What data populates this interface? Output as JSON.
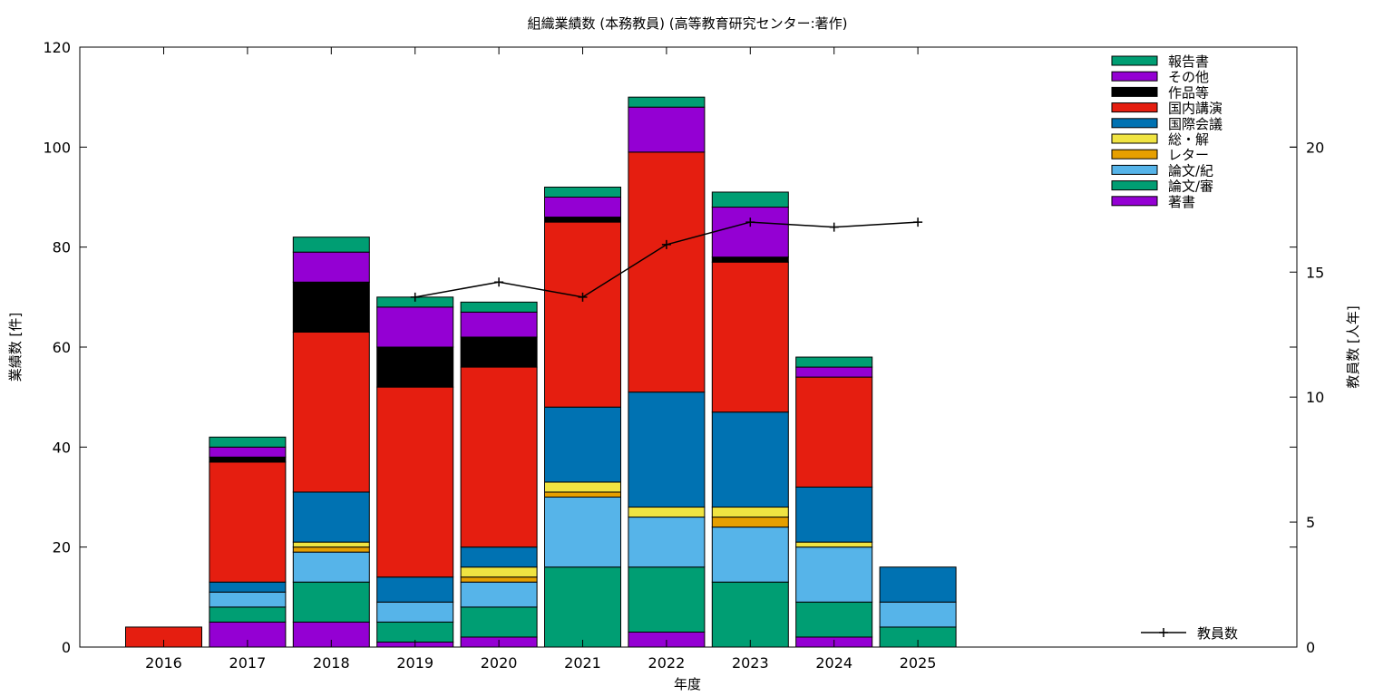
{
  "chart_data": {
    "type": "bar",
    "title": "組織業績数 (本務教員) (高等教育研究センター:著作)",
    "xlabel": "年度",
    "ylabel": "業績数 [件]",
    "y2label": "教員数 [人年]",
    "ylim": [
      0,
      120
    ],
    "y2lim": [
      0,
      24
    ],
    "yticks": [
      0,
      20,
      40,
      60,
      80,
      100,
      120
    ],
    "y2ticks": [
      0,
      5,
      10,
      15,
      20
    ],
    "grid": false,
    "legend_position": "top-right",
    "line_legend_position": "bottom-right",
    "categories": [
      "2016",
      "2017",
      "2018",
      "2019",
      "2020",
      "2021",
      "2022",
      "2023",
      "2024",
      "2025"
    ],
    "stack_series": [
      {
        "name": "著書",
        "color": "#9400d3",
        "values": [
          0,
          5,
          5,
          1,
          2,
          0,
          3,
          0,
          2,
          0
        ]
      },
      {
        "name": "論文/審",
        "color": "#009e73",
        "values": [
          0,
          3,
          8,
          4,
          6,
          16,
          13,
          13,
          7,
          4
        ]
      },
      {
        "name": "論文/紀",
        "color": "#56b4e9",
        "values": [
          0,
          3,
          6,
          4,
          5,
          14,
          10,
          11,
          11,
          5
        ]
      },
      {
        "name": "レター",
        "color": "#e69f00",
        "values": [
          0,
          0,
          1,
          0,
          1,
          1,
          0,
          2,
          0,
          0
        ]
      },
      {
        "name": "総・解",
        "color": "#f0e442",
        "values": [
          0,
          0,
          1,
          0,
          2,
          2,
          2,
          2,
          1,
          0
        ]
      },
      {
        "name": "国際会議",
        "color": "#0072b2",
        "values": [
          0,
          2,
          10,
          5,
          4,
          15,
          23,
          19,
          11,
          7
        ]
      },
      {
        "name": "国内講演",
        "color": "#e51e10",
        "values": [
          4,
          24,
          32,
          38,
          36,
          37,
          48,
          30,
          22,
          0
        ]
      },
      {
        "name": "作品等",
        "color": "#000000",
        "values": [
          0,
          1,
          10,
          8,
          6,
          1,
          0,
          1,
          0,
          0
        ]
      },
      {
        "name": "その他",
        "color": "#9400d3",
        "values": [
          0,
          2,
          6,
          8,
          5,
          4,
          9,
          10,
          2,
          0
        ]
      },
      {
        "name": "報告書",
        "color": "#009e73",
        "values": [
          0,
          2,
          3,
          2,
          2,
          2,
          2,
          3,
          2,
          0
        ]
      }
    ],
    "line_series": {
      "name": "教員数",
      "axis": "right",
      "color": "#000000",
      "categories": [
        "2019",
        "2020",
        "2021",
        "2022",
        "2023",
        "2024",
        "2025"
      ],
      "values": [
        14,
        14.6,
        14,
        16.1,
        17,
        16.8,
        17
      ]
    }
  }
}
